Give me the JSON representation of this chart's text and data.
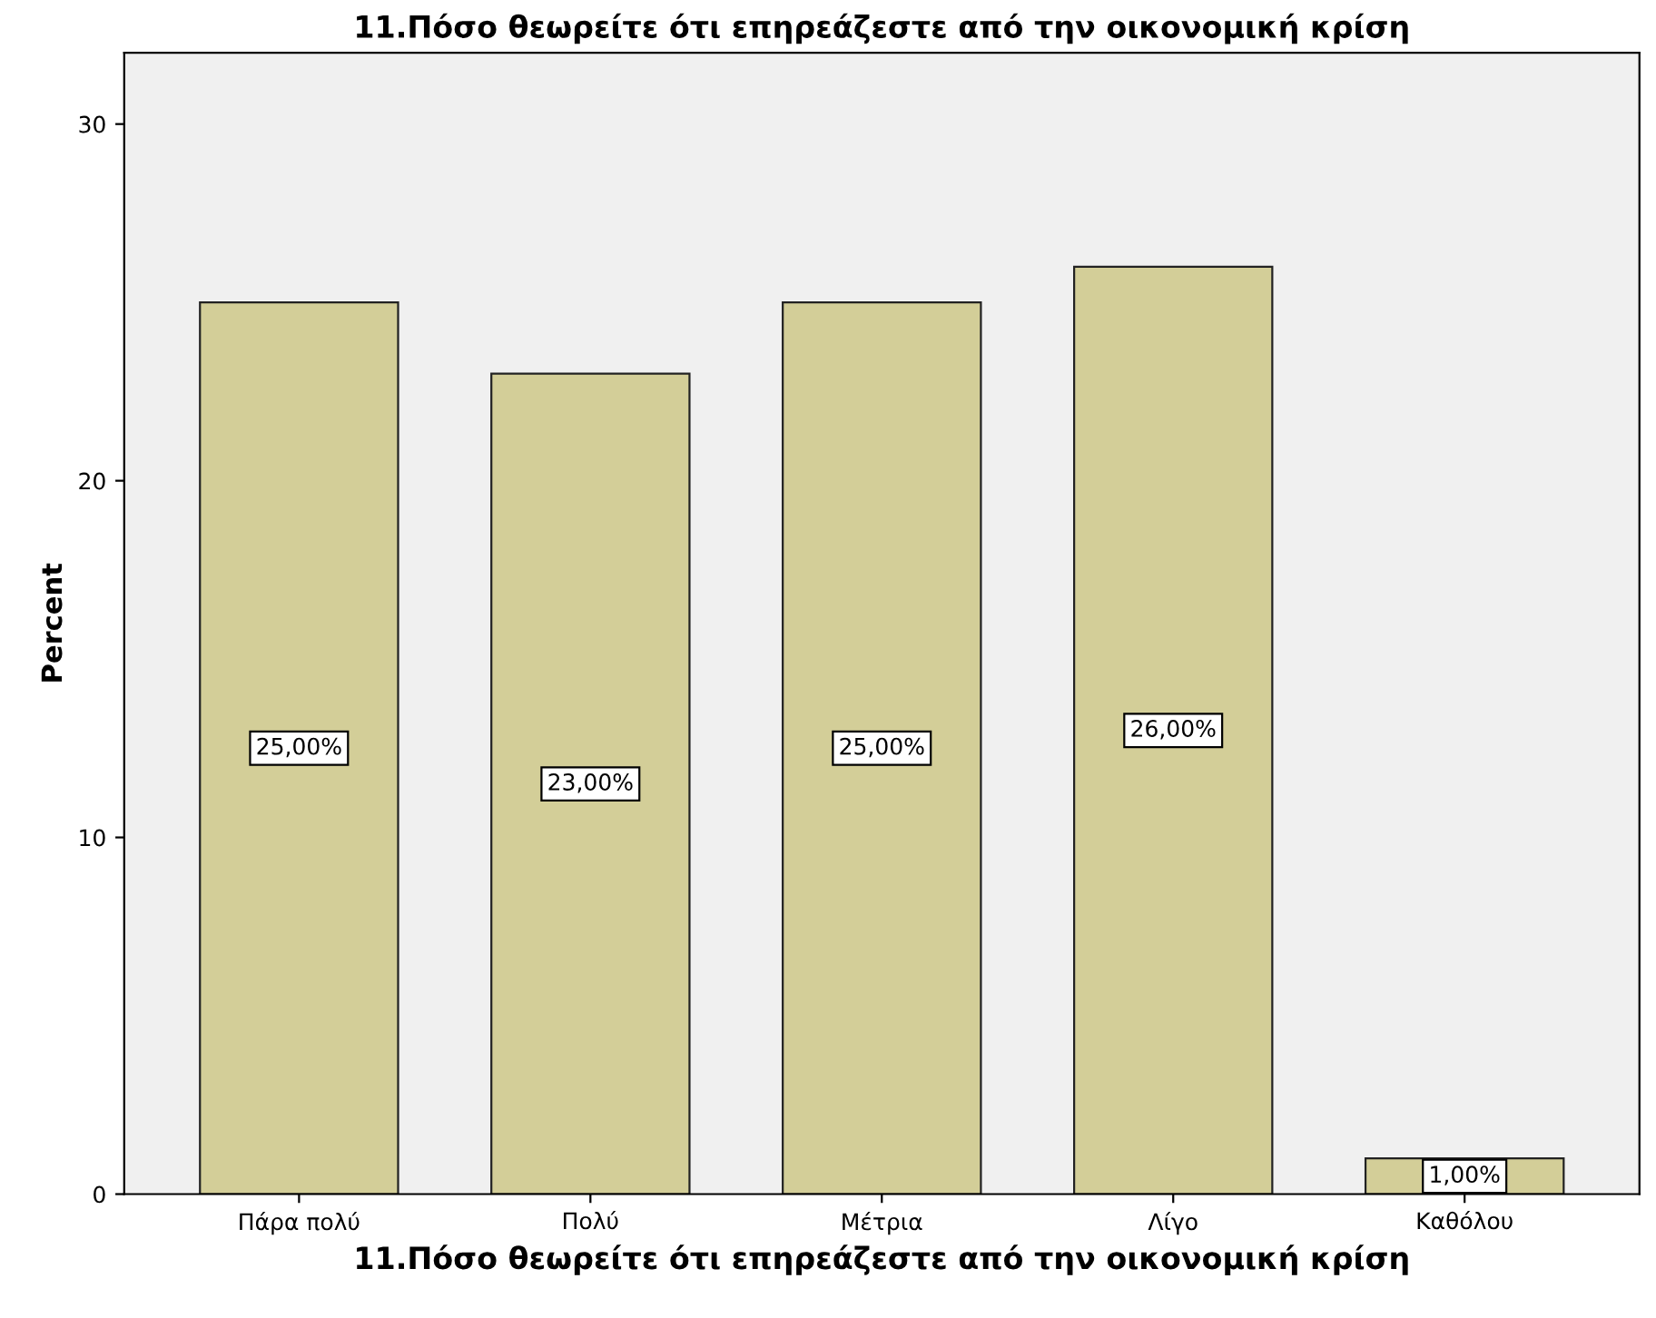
{
  "chart_data": {
    "type": "bar",
    "title": "11.Πόσο θεωρείτε ότι επηρεάζεστε από την οικονομική κρίση",
    "xlabel": "11.Πόσο θεωρείτε ότι επηρεάζεστε από την οικονομική κρίση",
    "ylabel": "Percent",
    "categories": [
      "Πάρα πολύ",
      "Πολύ",
      "Μέτρια",
      "Λίγο",
      "Καθόλου"
    ],
    "values": [
      25,
      23,
      25,
      26,
      1
    ],
    "value_labels": [
      "25,00%",
      "23,00%",
      "25,00%",
      "26,00%",
      "1,00%"
    ],
    "color": "#d3ce98",
    "ylim": [
      0,
      32
    ],
    "yticks": [
      0,
      10,
      20,
      30
    ],
    "grid": false,
    "legend": false
  }
}
